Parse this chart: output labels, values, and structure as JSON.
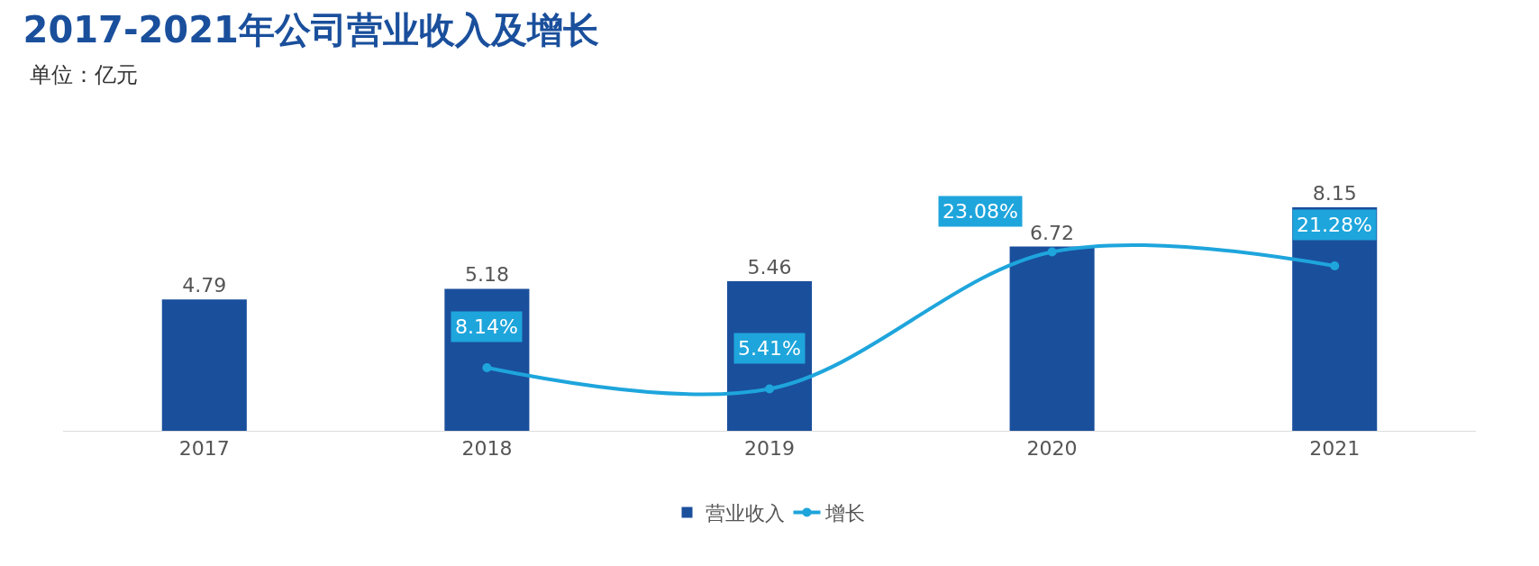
{
  "chart_data": {
    "type": "bar",
    "title": "2017-2021年公司营业收入及增长",
    "subtitle": "单位：亿元",
    "categories": [
      "2017",
      "2018",
      "2019",
      "2020",
      "2021"
    ],
    "series": [
      {
        "name": "营业收入",
        "color": "#1a4f9c",
        "values": [
          4.79,
          5.18,
          5.46,
          6.72,
          8.15
        ],
        "value_labels": [
          "4.79",
          "5.18",
          "5.46",
          "6.72",
          "8.15"
        ]
      },
      {
        "name": "增长",
        "type": "line",
        "axis": "y2",
        "color": "#1ea5dc",
        "values": [
          null,
          8.14,
          5.41,
          23.08,
          21.28
        ],
        "value_labels": [
          null,
          "8.14%",
          "5.41%",
          "23.08%",
          "21.28%"
        ]
      }
    ],
    "tick_labels": "x",
    "grid": false,
    "legend": "bottom",
    "marker": "circle",
    "line_style": "solid"
  }
}
